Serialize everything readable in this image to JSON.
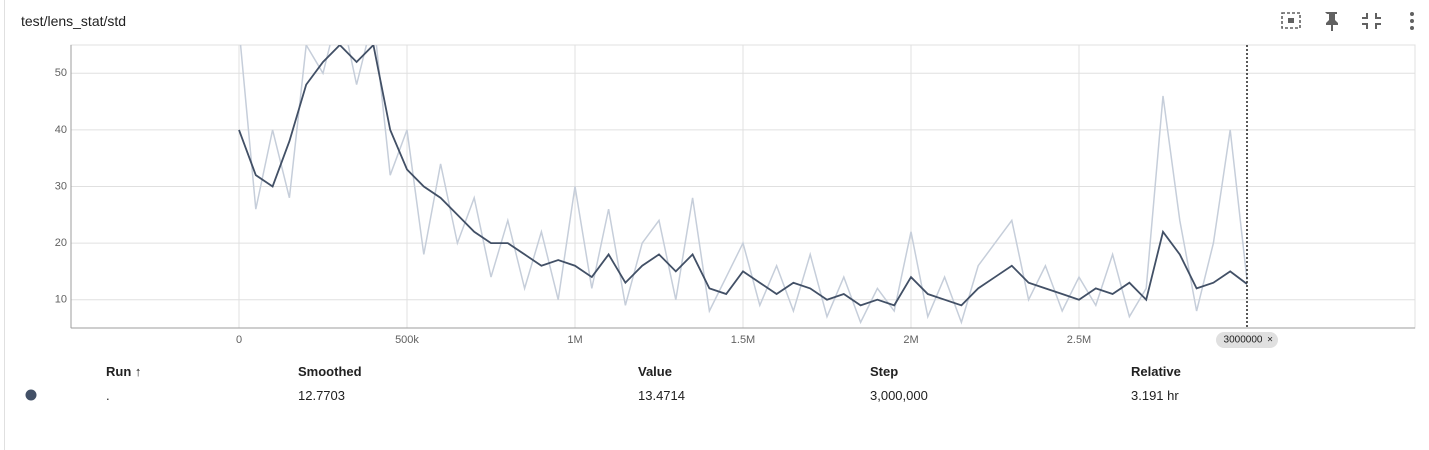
{
  "card_title": "test/lens_stat/std",
  "chart_data": {
    "type": "line",
    "x": [
      0,
      50000,
      100000,
      150000,
      200000,
      250000,
      300000,
      350000,
      400000,
      450000,
      500000,
      550000,
      600000,
      650000,
      700000,
      750000,
      800000,
      850000,
      900000,
      950000,
      1000000,
      1050000,
      1100000,
      1150000,
      1200000,
      1250000,
      1300000,
      1350000,
      1400000,
      1450000,
      1500000,
      1550000,
      1600000,
      1650000,
      1700000,
      1750000,
      1800000,
      1850000,
      1900000,
      1950000,
      2000000,
      2050000,
      2100000,
      2150000,
      2200000,
      2250000,
      2300000,
      2350000,
      2400000,
      2450000,
      2500000,
      2550000,
      2600000,
      2650000,
      2700000,
      2750000,
      2800000,
      2850000,
      2900000,
      2950000,
      3000000
    ],
    "series": [
      {
        "color": "#c6ceda",
        "values": [
          58,
          26,
          40,
          28,
          55,
          50,
          62,
          48,
          60,
          32,
          40,
          18,
          34,
          20,
          28,
          14,
          24,
          12,
          22,
          10,
          30,
          12,
          26,
          9,
          20,
          24,
          10,
          28,
          8,
          14,
          20,
          9,
          16,
          8,
          18,
          7,
          14,
          6,
          12,
          8,
          22,
          7,
          14,
          6,
          16,
          20,
          24,
          10,
          16,
          8,
          14,
          9,
          18,
          7,
          12,
          46,
          24,
          8,
          20,
          40,
          13.4714
        ]
      },
      {
        "color": "#425066",
        "values": [
          40,
          32,
          30,
          38,
          48,
          52,
          55,
          52,
          55,
          40,
          33,
          30,
          28,
          25,
          22,
          20,
          20,
          18,
          16,
          17,
          16,
          14,
          18,
          13,
          16,
          18,
          15,
          18,
          12,
          11,
          15,
          13,
          11,
          13,
          12,
          10,
          11,
          9,
          10,
          9,
          14,
          11,
          10,
          9,
          12,
          14,
          16,
          13,
          12,
          11,
          10,
          12,
          11,
          13,
          10,
          22,
          18,
          12,
          13,
          15,
          12.7703
        ]
      }
    ],
    "xlim": [
      -500000,
      3500000
    ],
    "ylim": [
      5,
      55
    ],
    "xticks": [
      {
        "value": 0,
        "label": "0"
      },
      {
        "value": 500000,
        "label": "500k"
      },
      {
        "value": 1000000,
        "label": "1M"
      },
      {
        "value": 1500000,
        "label": "1.5M"
      },
      {
        "value": 2000000,
        "label": "2M"
      },
      {
        "value": 2500000,
        "label": "2.5M"
      }
    ],
    "yticks": [
      10,
      20,
      30,
      40,
      50
    ],
    "grid": true,
    "cursor_step": 3000000
  },
  "table": {
    "headers": [
      "Run ↑",
      "Smoothed",
      "Value",
      "Step",
      "Relative"
    ],
    "rows": [
      [
        ".",
        "12.7703",
        "13.4714",
        "3,000,000",
        "3.191 hr"
      ]
    ]
  }
}
